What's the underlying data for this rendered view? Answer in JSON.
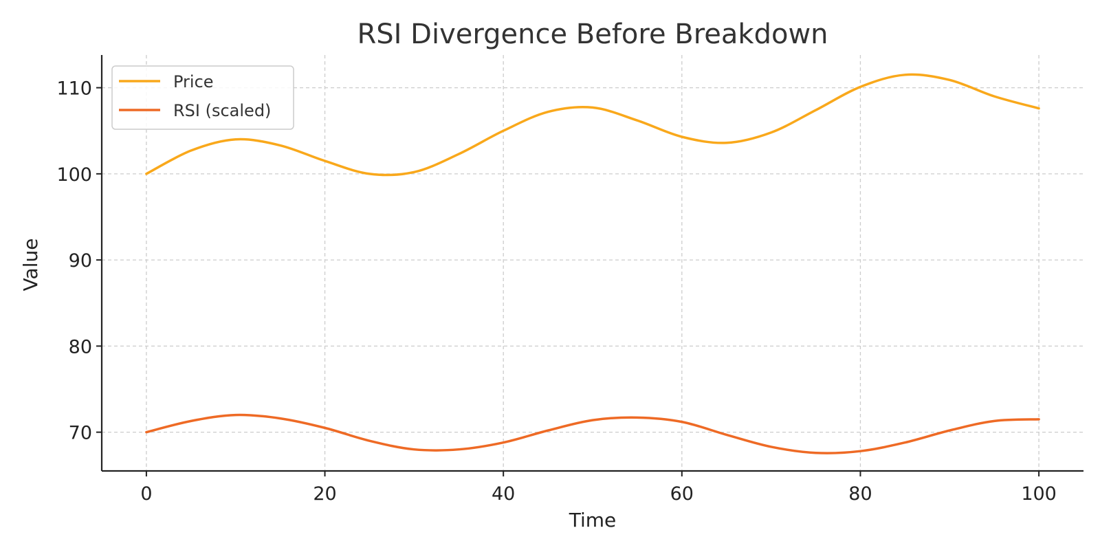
{
  "chart_data": {
    "type": "line",
    "title": "RSI Divergence Before Breakdown",
    "xlabel": "Time",
    "ylabel": "Value",
    "xlim": [
      -5,
      105
    ],
    "ylim": [
      65.5,
      113.8
    ],
    "xticks": [
      0,
      20,
      40,
      60,
      80,
      100
    ],
    "yticks": [
      70,
      80,
      90,
      100,
      110
    ],
    "grid": true,
    "legend_position": "top-left",
    "series": [
      {
        "name": "Price",
        "color": "#F9A81B",
        "x": [
          0,
          5,
          10,
          15,
          20,
          25,
          30,
          35,
          40,
          45,
          50,
          55,
          60,
          65,
          70,
          75,
          80,
          85,
          90,
          95,
          100
        ],
        "values": [
          100.0,
          102.7,
          104.0,
          103.3,
          101.5,
          100.0,
          100.2,
          102.3,
          105.0,
          107.2,
          107.7,
          106.2,
          104.3,
          103.6,
          104.8,
          107.4,
          110.1,
          111.5,
          110.9,
          109.0,
          107.6
        ]
      },
      {
        "name": "RSI (scaled)",
        "color": "#EE6A25",
        "x": [
          0,
          5,
          10,
          15,
          20,
          25,
          30,
          35,
          40,
          45,
          50,
          55,
          60,
          65,
          70,
          75,
          80,
          85,
          90,
          95,
          100
        ],
        "values": [
          70.0,
          71.3,
          72.0,
          71.6,
          70.5,
          69.0,
          68.0,
          68.0,
          68.8,
          70.2,
          71.4,
          71.7,
          71.2,
          69.7,
          68.3,
          67.6,
          67.8,
          68.8,
          70.2,
          71.3,
          71.5
        ]
      }
    ]
  }
}
